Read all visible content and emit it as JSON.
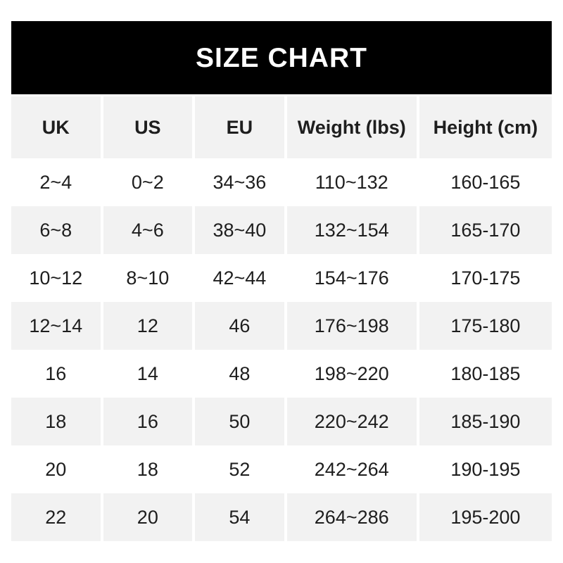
{
  "banner": {
    "title": "SIZE CHART",
    "bg_color": "#000000",
    "text_color": "#ffffff"
  },
  "chart_data": {
    "type": "table",
    "title": "SIZE CHART",
    "columns": [
      "UK",
      "US",
      "EU",
      "Weight (lbs)",
      "Height (cm)"
    ],
    "rows": [
      [
        "2~4",
        "0~2",
        "34~36",
        "110~132",
        "160-165"
      ],
      [
        "6~8",
        "4~6",
        "38~40",
        "132~154",
        "165-170"
      ],
      [
        "10~12",
        "8~10",
        "42~44",
        "154~176",
        "170-175"
      ],
      [
        "12~14",
        "12",
        "46",
        "176~198",
        "175-180"
      ],
      [
        "16",
        "14",
        "48",
        "198~220",
        "180-185"
      ],
      [
        "18",
        "16",
        "50",
        "220~242",
        "185-190"
      ],
      [
        "20",
        "18",
        "52",
        "242~264",
        "190-195"
      ],
      [
        "22",
        "20",
        "54",
        "264~286",
        "195-200"
      ]
    ],
    "layout": {
      "striped": true,
      "stripe_color": "#f2f2f2",
      "header_bg": "#f2f2f2",
      "row_bg": "#ffffff",
      "divider_color": "#ffffff",
      "text_color": "#1e1e1e"
    }
  }
}
